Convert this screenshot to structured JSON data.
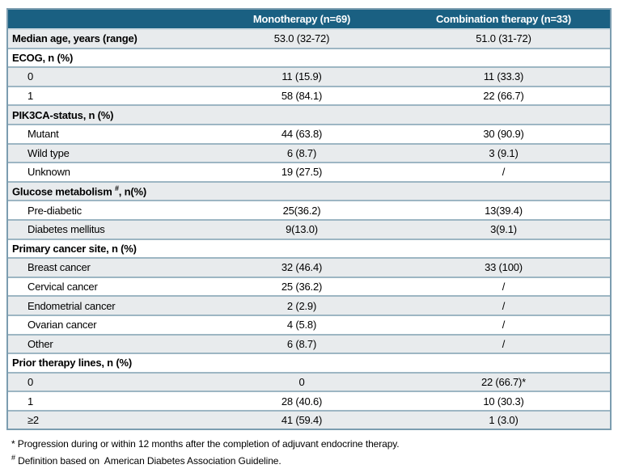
{
  "colors": {
    "header_bg": "#1A6082",
    "header_text": "#FFFFFF",
    "shaded_row": "#E8EBED",
    "separator": "#9DB6C3",
    "border": "#7C9DB0"
  },
  "table": {
    "columns": [
      "",
      "Monotherapy (n=69)",
      "Combination therapy (n=33)"
    ],
    "rows": [
      {
        "label": "Median age, years (range)",
        "mono": "53.0 (32-72)",
        "combo": "51.0 (31-72)",
        "style": "top"
      },
      {
        "label": "ECOG, n (%)",
        "mono": "",
        "combo": "",
        "style": "section"
      },
      {
        "label": "0",
        "mono": "11 (15.9)",
        "combo": "11 (33.3)",
        "style": "data"
      },
      {
        "label": "1",
        "mono": "58 (84.1)",
        "combo": "22 (66.7)",
        "style": "data"
      },
      {
        "label": "PIK3CA-status, n (%)",
        "mono": "",
        "combo": "",
        "style": "section"
      },
      {
        "label": "Mutant",
        "mono": "44 (63.8)",
        "combo": "30 (90.9)",
        "style": "data"
      },
      {
        "label": "Wild type",
        "mono": "6 (8.7)",
        "combo": "3 (9.1)",
        "style": "data"
      },
      {
        "label": "Unknown",
        "mono": "19 (27.5)",
        "combo": "/",
        "style": "data"
      },
      {
        "label": "Glucose metabolism ",
        "label_sup": "#",
        "label_suffix": ", n(%)",
        "mono": "",
        "combo": "",
        "style": "section"
      },
      {
        "label": "Pre-diabetic",
        "mono": "25(36.2)",
        "combo": "13(39.4)",
        "style": "data"
      },
      {
        "label": "Diabetes mellitus",
        "mono": "9(13.0)",
        "combo": "3(9.1)",
        "style": "data"
      },
      {
        "label": "Primary cancer site, n (%)",
        "mono": "",
        "combo": "",
        "style": "section"
      },
      {
        "label": "Breast cancer",
        "mono": "32 (46.4)",
        "combo": "33 (100)",
        "style": "data"
      },
      {
        "label": "Cervical cancer",
        "mono": "25 (36.2)",
        "combo": "/",
        "style": "data"
      },
      {
        "label": "Endometrial cancer",
        "mono": "2 (2.9)",
        "combo": "/",
        "style": "data"
      },
      {
        "label": "Ovarian cancer",
        "mono": "4 (5.8)",
        "combo": "/",
        "style": "data"
      },
      {
        "label": "Other",
        "mono": "6 (8.7)",
        "combo": "/",
        "style": "data"
      },
      {
        "label": "Prior therapy lines, n (%)",
        "mono": "",
        "combo": "",
        "style": "section"
      },
      {
        "label": "0",
        "mono": "0",
        "combo": "22 (66.7)*",
        "style": "data"
      },
      {
        "label": "1",
        "mono": "28 (40.6)",
        "combo": "10 (30.3)",
        "style": "data"
      },
      {
        "label": "≥2",
        "mono": "41 (59.4)",
        "combo": "1 (3.0)",
        "style": "data"
      }
    ]
  },
  "footnotes": [
    {
      "marker": "*",
      "marker_sup": false,
      "text": " Progression during or within 12 months after the completion of adjuvant endocrine therapy."
    },
    {
      "marker": "#",
      "marker_sup": true,
      "text": " Definition based on  American Diabetes Association Guideline."
    }
  ]
}
